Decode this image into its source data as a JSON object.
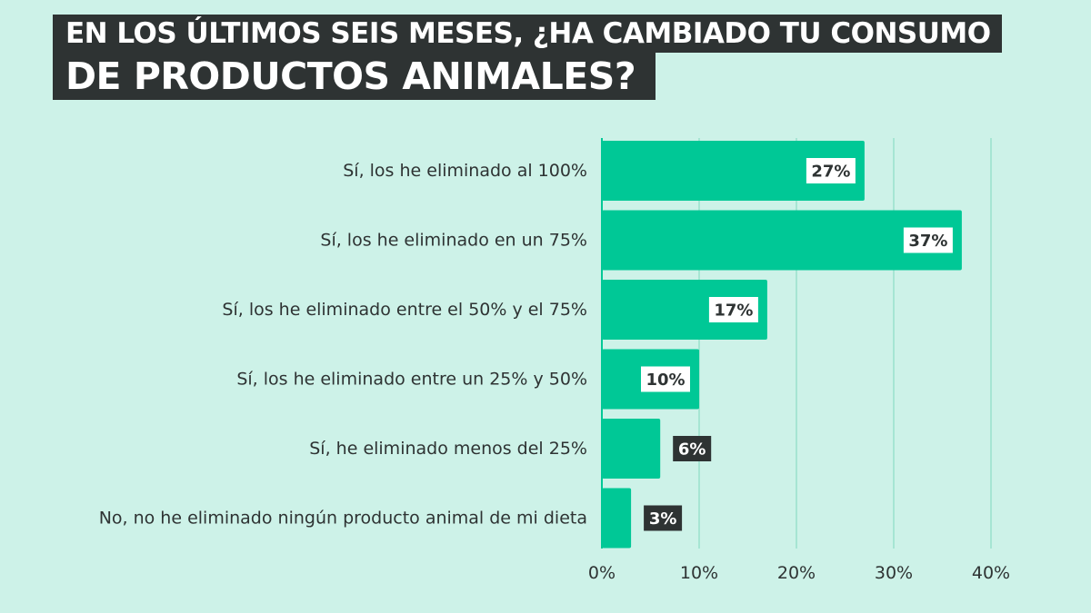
{
  "title": {
    "line1": "EN LOS ÚLTIMOS SEIS MESES, ¿HA CAMBIADO TU CONSUMO",
    "line2": "DE PRODUCTOS ANIMALES?"
  },
  "colors": {
    "background": "#cdf2e8",
    "bar": "#00c896",
    "title_bg": "#2e3333",
    "label_dark": "#2e3333",
    "gridline": "#7fd8be",
    "text": "#2e3333"
  },
  "chart_data": {
    "type": "bar",
    "orientation": "horizontal",
    "title": "EN LOS ÚLTIMOS SEIS MESES, ¿HA CAMBIADO TU CONSUMO DE PRODUCTOS ANIMALES?",
    "categories": [
      "Sí, los he eliminado al 100%",
      "Sí, los he eliminado en un 75%",
      "Sí, los he eliminado entre el 50% y el 75%",
      "Sí, los he eliminado entre un 25% y 50%",
      "Sí, he eliminado menos del 25%",
      "No, no he eliminado ningún producto animal de mi dieta"
    ],
    "values": [
      27,
      37,
      17,
      10,
      6,
      3
    ],
    "value_labels": [
      "27%",
      "37%",
      "17%",
      "10%",
      "6%",
      "3%"
    ],
    "xlim": [
      0,
      40
    ],
    "xticks": [
      0,
      10,
      20,
      30,
      40
    ],
    "xtick_labels": [
      "0%",
      "10%",
      "20%",
      "30%",
      "40%"
    ],
    "xlabel": "",
    "ylabel": "",
    "grid": true
  }
}
